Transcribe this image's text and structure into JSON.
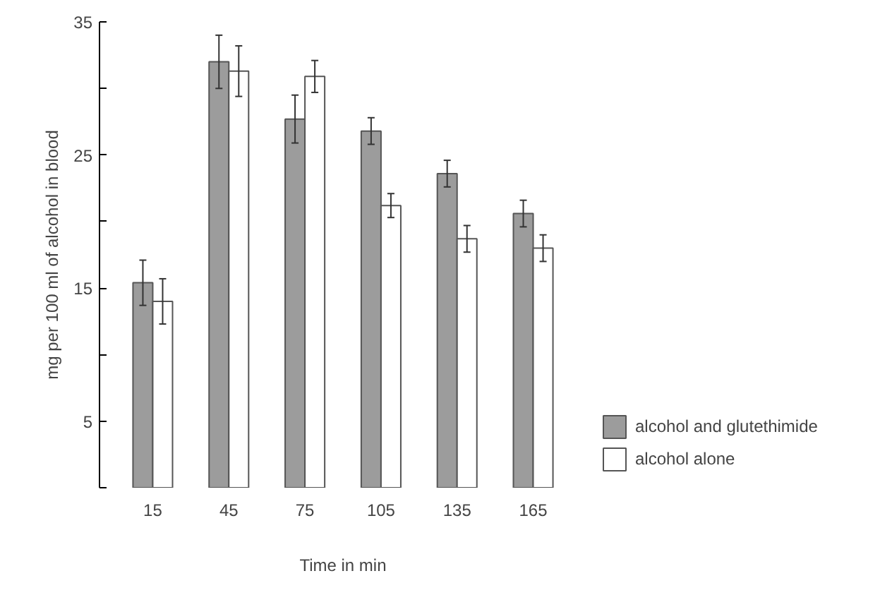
{
  "chart_data": {
    "type": "bar",
    "xlabel": "Time in min",
    "ylabel": "mg per 100 ml of alcohol in blood",
    "categories": [
      "15",
      "45",
      "75",
      "105",
      "135",
      "165"
    ],
    "series": [
      {
        "name": "alcohol and glutethimide",
        "color": "#9c9c9c",
        "values": [
          15.4,
          32.0,
          27.7,
          26.8,
          23.6,
          20.6
        ],
        "errors": [
          1.7,
          2.0,
          1.8,
          1.0,
          1.0,
          1.0
        ]
      },
      {
        "name": "alcohol alone",
        "color": "#ffffff",
        "values": [
          14.0,
          31.3,
          30.9,
          21.2,
          18.7,
          18.0
        ],
        "errors": [
          1.7,
          1.9,
          1.2,
          0.9,
          1.0,
          1.0
        ]
      }
    ],
    "ylim": [
      0,
      35
    ],
    "yticks": [
      {
        "value": 0,
        "label": null
      },
      5,
      {
        "value": 10,
        "label": null
      },
      15,
      {
        "value": 20,
        "label": null
      },
      25,
      {
        "value": 30,
        "label": null
      },
      35
    ],
    "grid": false,
    "legend": "bottom right"
  }
}
